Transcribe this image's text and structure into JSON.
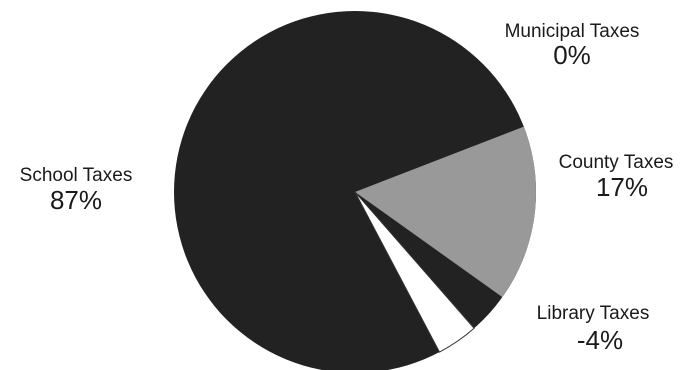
{
  "chart_data": {
    "type": "pie",
    "slices": [
      {
        "label": "School Taxes",
        "value_label": "87%",
        "value": 87,
        "color": "#222222"
      },
      {
        "label": "Municipal Taxes",
        "value_label": "0%",
        "value": 0,
        "color": "#222222"
      },
      {
        "label": "County Taxes",
        "value_label": "17%",
        "value": 17,
        "color": "#999999"
      },
      {
        "label": "Library Taxes",
        "value_label": "-4%",
        "value": -4,
        "color": "#ffffff"
      }
    ],
    "title": "",
    "legend": "none"
  }
}
